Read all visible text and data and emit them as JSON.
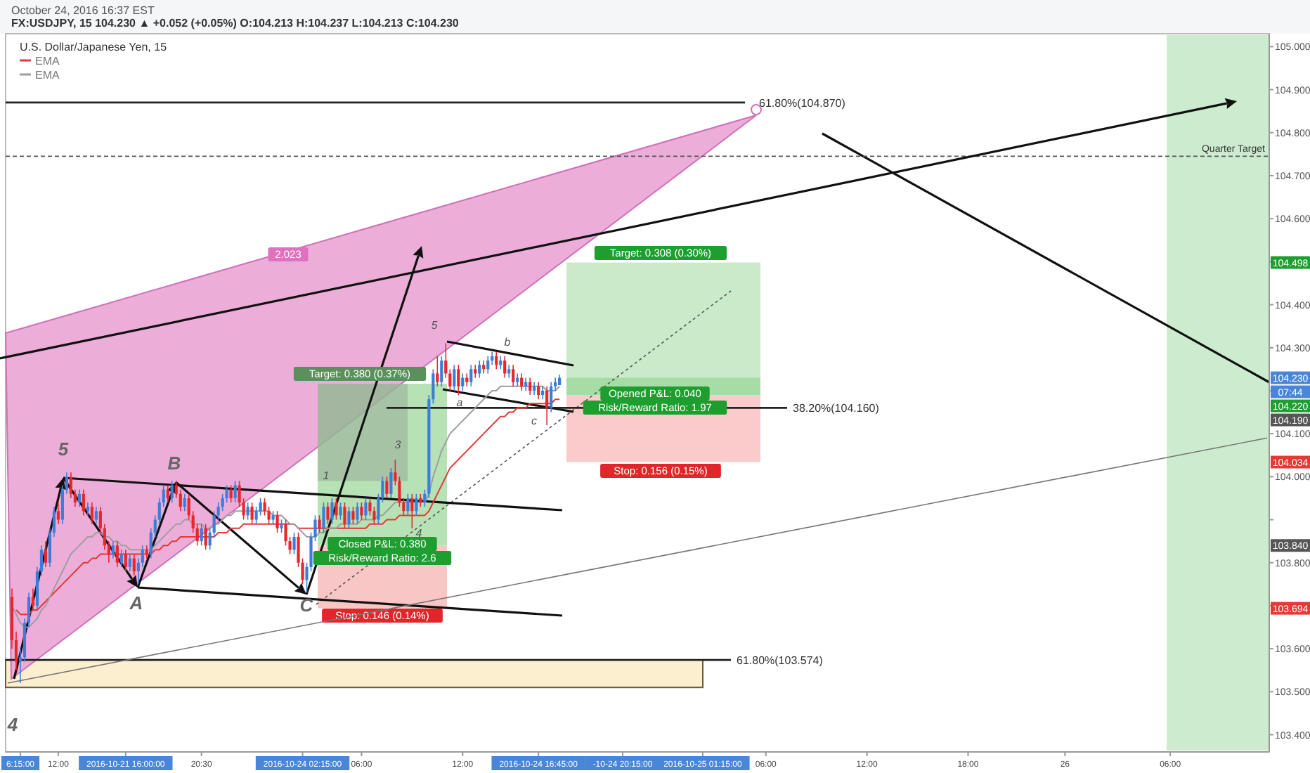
{
  "chart_data": {
    "type": "candlestick",
    "title": "U.S. Dollar/Japanese Yen, 15",
    "subtitle": "October 24, 2016 16:37 EST",
    "categories": [
      null,
      null,
      null,
      "6:15:00",
      null,
      null,
      null,
      null,
      null,
      null,
      null,
      null,
      "12:00",
      null,
      null,
      null,
      null,
      null,
      null,
      null,
      null,
      null,
      null,
      null,
      null,
      null,
      null,
      null,
      "2016-10-21 16:00:00",
      null,
      null,
      null,
      null,
      null,
      null,
      null,
      null,
      null,
      null,
      null,
      null,
      null,
      null,
      null,
      null,
      null,
      "20:30",
      null,
      null,
      null,
      null,
      null,
      null,
      null,
      null,
      null,
      null,
      null,
      null,
      null,
      null,
      null,
      null,
      null,
      null,
      null,
      null,
      null,
      null,
      null,
      "2016-10-24 02:15:00",
      null,
      null,
      null,
      null,
      null,
      null,
      null,
      null,
      null,
      null,
      null,
      null,
      null,
      "06:00",
      null,
      null,
      null,
      null,
      null,
      null,
      null,
      null,
      null,
      null,
      null,
      null,
      null,
      null,
      null,
      null,
      null,
      null,
      null,
      null,
      null,
      null,
      null,
      "12:00",
      null,
      null,
      null,
      null,
      null,
      null,
      null,
      null,
      null,
      null,
      null,
      null,
      null,
      null,
      null,
      null,
      null,
      "2016-10-24 16:45:00",
      null,
      null,
      null,
      null,
      null,
      null,
      null,
      null,
      null,
      null,
      null,
      null,
      null,
      null,
      null,
      null,
      null,
      null,
      null,
      "-10-24 20:15:00",
      null,
      null,
      null,
      null,
      null,
      null,
      null,
      null,
      null,
      null,
      null,
      null,
      null,
      null,
      null,
      null,
      null,
      null,
      "2016-10-25 01:15:00",
      null,
      null,
      null,
      null,
      null,
      null,
      null,
      null,
      null,
      null,
      null,
      null,
      null,
      null,
      "06:00",
      null,
      null,
      null,
      null,
      null,
      null,
      null,
      null,
      null,
      null,
      null,
      null,
      null,
      null,
      null,
      null,
      null,
      null,
      null,
      null,
      null,
      null,
      null,
      "12:00",
      null,
      null,
      null,
      null,
      null,
      null,
      null,
      null,
      null,
      null,
      null,
      null,
      null,
      null,
      null,
      null,
      null,
      null,
      null,
      null,
      null,
      null,
      null,
      "18:00",
      null,
      null,
      null,
      null,
      null,
      null,
      null,
      null,
      null,
      null,
      null,
      null,
      null,
      null,
      null,
      null,
      null,
      null,
      null,
      null,
      null,
      null,
      "26",
      null,
      null,
      null,
      null,
      null,
      null,
      null,
      null,
      null,
      null,
      null,
      null,
      null,
      null,
      null,
      null,
      null,
      null,
      null,
      null,
      null,
      null,
      null,
      null,
      "06:00",
      null,
      null,
      null,
      null,
      null,
      null,
      null,
      null,
      null,
      null,
      null,
      null,
      null,
      null,
      null,
      null,
      null,
      null,
      null,
      null,
      null,
      null,
      null
    ],
    "ohlc": [
      null,
      [
        103.72,
        103.74,
        103.6,
        103.62
      ],
      [
        103.62,
        103.64,
        103.55,
        103.57
      ],
      [
        103.57,
        103.6,
        103.52,
        103.58
      ],
      [
        103.58,
        103.67,
        103.57,
        103.66
      ],
      [
        103.66,
        103.73,
        103.65,
        103.72
      ],
      [
        103.72,
        103.74,
        103.69,
        103.7
      ],
      [
        103.7,
        103.79,
        103.69,
        103.78
      ],
      [
        103.78,
        103.84,
        103.77,
        103.83
      ],
      [
        103.83,
        103.85,
        103.79,
        103.8
      ],
      [
        103.8,
        103.88,
        103.79,
        103.87
      ],
      [
        103.87,
        103.93,
        103.86,
        103.92
      ],
      [
        103.92,
        103.94,
        103.89,
        103.9
      ],
      [
        103.9,
        103.98,
        103.89,
        103.97
      ],
      [
        103.97,
        104.01,
        103.96,
        104.0
      ],
      [
        104.0,
        104.01,
        103.95,
        103.96
      ],
      [
        103.96,
        103.97,
        103.93,
        103.94
      ],
      [
        103.94,
        103.97,
        103.93,
        103.96
      ],
      [
        103.96,
        103.97,
        103.91,
        103.92
      ],
      [
        103.92,
        103.94,
        103.91,
        103.93
      ],
      [
        103.93,
        103.94,
        103.89,
        103.9
      ],
      [
        103.9,
        103.93,
        103.89,
        103.92
      ],
      [
        103.92,
        103.93,
        103.87,
        103.88
      ],
      [
        103.88,
        103.89,
        103.83,
        103.84
      ],
      [
        103.84,
        103.85,
        103.8,
        103.82
      ],
      [
        103.82,
        103.85,
        103.81,
        103.84
      ],
      [
        103.84,
        103.85,
        103.79,
        103.8
      ],
      [
        103.8,
        103.83,
        103.79,
        103.82
      ],
      [
        103.82,
        103.83,
        103.78,
        103.79
      ],
      [
        103.79,
        103.82,
        103.78,
        103.81
      ],
      [
        103.81,
        103.82,
        103.77,
        103.78
      ],
      [
        103.78,
        103.81,
        103.75,
        103.8
      ],
      [
        103.8,
        103.84,
        103.79,
        103.83
      ],
      [
        103.83,
        103.84,
        103.81,
        103.82
      ],
      [
        103.82,
        103.88,
        103.81,
        103.87
      ],
      [
        103.87,
        103.91,
        103.86,
        103.9
      ],
      [
        103.9,
        103.95,
        103.89,
        103.94
      ],
      [
        103.94,
        103.98,
        103.93,
        103.97
      ],
      [
        103.97,
        103.98,
        103.94,
        103.95
      ],
      [
        103.95,
        103.99,
        103.94,
        103.98
      ],
      [
        103.98,
        103.99,
        103.95,
        103.96
      ],
      [
        103.96,
        103.97,
        103.92,
        103.93
      ],
      [
        103.93,
        103.96,
        103.92,
        103.95
      ],
      [
        103.95,
        103.96,
        103.9,
        103.91
      ],
      [
        103.91,
        103.92,
        103.87,
        103.88
      ],
      [
        103.88,
        103.89,
        103.84,
        103.85
      ],
      [
        103.85,
        103.89,
        103.84,
        103.88
      ],
      [
        103.88,
        103.89,
        103.83,
        103.84
      ],
      [
        103.84,
        103.88,
        103.83,
        103.87
      ],
      [
        103.87,
        103.92,
        103.86,
        103.91
      ],
      [
        103.91,
        103.94,
        103.9,
        103.93
      ],
      [
        103.93,
        103.96,
        103.92,
        103.95
      ],
      [
        103.95,
        103.98,
        103.94,
        103.97
      ],
      [
        103.97,
        103.98,
        103.94,
        103.95
      ],
      [
        103.95,
        103.99,
        103.94,
        103.98
      ],
      [
        103.98,
        103.99,
        103.93,
        103.94
      ],
      [
        103.94,
        103.95,
        103.9,
        103.91
      ],
      [
        103.91,
        103.94,
        103.9,
        103.93
      ],
      [
        103.93,
        103.94,
        103.89,
        103.9
      ],
      [
        103.9,
        103.93,
        103.89,
        103.92
      ],
      [
        103.92,
        103.95,
        103.91,
        103.94
      ],
      [
        103.94,
        103.95,
        103.91,
        103.92
      ],
      [
        103.92,
        103.93,
        103.89,
        103.9
      ],
      [
        103.9,
        103.92,
        103.89,
        103.91
      ],
      [
        103.91,
        103.92,
        103.87,
        103.88
      ],
      [
        103.88,
        103.9,
        103.87,
        103.89
      ],
      [
        103.89,
        103.9,
        103.84,
        103.85
      ],
      [
        103.85,
        103.86,
        103.82,
        103.83
      ],
      [
        103.83,
        103.87,
        103.82,
        103.86
      ],
      [
        103.86,
        103.87,
        103.79,
        103.8
      ],
      [
        103.8,
        103.81,
        103.75,
        103.76
      ],
      [
        103.76,
        103.8,
        103.73,
        103.79
      ],
      [
        103.79,
        103.87,
        103.78,
        103.86
      ],
      [
        103.86,
        103.91,
        103.85,
        103.9
      ],
      [
        103.9,
        103.91,
        103.87,
        103.88
      ],
      [
        103.88,
        103.94,
        103.87,
        103.93
      ],
      [
        103.93,
        103.94,
        103.89,
        103.9
      ],
      [
        103.9,
        103.95,
        103.89,
        103.94
      ],
      [
        103.94,
        103.95,
        103.9,
        103.91
      ],
      [
        103.91,
        103.94,
        103.9,
        103.93
      ],
      [
        103.93,
        103.94,
        103.88,
        103.89
      ],
      [
        103.89,
        103.93,
        103.88,
        103.92
      ],
      [
        103.92,
        103.93,
        103.89,
        103.9
      ],
      [
        103.9,
        103.94,
        103.89,
        103.93
      ],
      [
        103.93,
        103.94,
        103.9,
        103.91
      ],
      [
        103.91,
        103.95,
        103.9,
        103.94
      ],
      [
        103.94,
        103.95,
        103.91,
        103.92
      ],
      [
        103.92,
        103.93,
        103.89,
        103.9
      ],
      [
        103.9,
        103.96,
        103.89,
        103.95
      ],
      [
        103.95,
        104.0,
        103.94,
        103.99
      ],
      [
        103.99,
        104.0,
        103.95,
        103.96
      ],
      [
        103.96,
        104.02,
        103.95,
        104.01
      ],
      [
        104.01,
        104.04,
        103.98,
        103.99
      ],
      [
        103.99,
        104.0,
        103.93,
        103.94
      ],
      [
        103.94,
        103.95,
        103.91,
        103.92
      ],
      [
        103.92,
        103.96,
        103.91,
        103.95
      ],
      [
        103.95,
        103.96,
        103.88,
        103.92
      ],
      [
        103.92,
        103.96,
        103.91,
        103.95
      ],
      [
        103.95,
        103.96,
        103.93,
        103.94
      ],
      [
        103.94,
        103.97,
        103.93,
        103.96
      ],
      [
        103.96,
        104.19,
        103.95,
        104.18
      ],
      [
        104.18,
        104.25,
        104.17,
        104.24
      ],
      [
        104.24,
        104.28,
        104.21,
        104.22
      ],
      [
        104.22,
        104.28,
        104.21,
        104.27
      ],
      [
        104.27,
        104.31,
        104.23,
        104.24
      ],
      [
        104.24,
        104.25,
        104.2,
        104.21
      ],
      [
        104.21,
        104.26,
        104.2,
        104.25
      ],
      [
        104.25,
        104.26,
        104.19,
        104.21
      ],
      [
        104.21,
        104.24,
        104.2,
        104.23
      ],
      [
        104.23,
        104.24,
        104.21,
        104.22
      ],
      [
        104.22,
        104.26,
        104.21,
        104.25
      ],
      [
        104.25,
        104.26,
        104.23,
        104.24
      ],
      [
        104.24,
        104.27,
        104.23,
        104.26
      ],
      [
        104.26,
        104.27,
        104.24,
        104.25
      ],
      [
        104.25,
        104.28,
        104.24,
        104.27
      ],
      [
        104.27,
        104.29,
        104.26,
        104.28
      ],
      [
        104.28,
        104.29,
        104.25,
        104.26
      ],
      [
        104.26,
        104.28,
        104.25,
        104.27
      ],
      [
        104.27,
        104.28,
        104.23,
        104.24
      ],
      [
        104.24,
        104.26,
        104.23,
        104.25
      ],
      [
        104.25,
        104.26,
        104.21,
        104.22
      ],
      [
        104.22,
        104.24,
        104.21,
        104.23
      ],
      [
        104.23,
        104.24,
        104.2,
        104.21
      ],
      [
        104.21,
        104.23,
        104.2,
        104.22
      ],
      [
        104.22,
        104.23,
        104.19,
        104.2
      ],
      [
        104.2,
        104.22,
        104.19,
        104.21
      ],
      [
        104.21,
        104.22,
        104.18,
        104.19
      ],
      [
        104.19,
        104.21,
        104.18,
        104.2
      ],
      [
        104.2,
        104.21,
        104.12,
        104.16
      ],
      [
        104.16,
        104.22,
        104.15,
        104.21
      ],
      [
        104.21,
        104.23,
        104.2,
        104.22
      ],
      [
        104.213,
        104.237,
        104.213,
        104.23
      ],
      null,
      null,
      null,
      null,
      null,
      null,
      null,
      null,
      null,
      null,
      null,
      null,
      null,
      null,
      null,
      null,
      null,
      null,
      null,
      null,
      null,
      null,
      null,
      null,
      null,
      null,
      null,
      null,
      null,
      null,
      null,
      null,
      null,
      null,
      null,
      null,
      null,
      null,
      null,
      null,
      null,
      null,
      null,
      null,
      null,
      null,
      null,
      null,
      null,
      null,
      null,
      null,
      null,
      null,
      null,
      null,
      null,
      null,
      null,
      null,
      null,
      null,
      null,
      null,
      null,
      null,
      null,
      null,
      null,
      null,
      null,
      null,
      null,
      null,
      null,
      null,
      null,
      null,
      null,
      null,
      null,
      null,
      null,
      null,
      null,
      null,
      null,
      null,
      null,
      null,
      null,
      null,
      null,
      null,
      null,
      null,
      null,
      null,
      null,
      null,
      null,
      null,
      null,
      null,
      null,
      null,
      null,
      null,
      null,
      null,
      null,
      null,
      null,
      null,
      null,
      null,
      null,
      null,
      null,
      null,
      null,
      null,
      null,
      null,
      null,
      null,
      null,
      null,
      null,
      null,
      null,
      null,
      null,
      null,
      null,
      null,
      null,
      null,
      null,
      null,
      null,
      null,
      null,
      null,
      null,
      null,
      null,
      null,
      null,
      null,
      null,
      null,
      null,
      null,
      null,
      null,
      null,
      null,
      null,
      null,
      null,
      null,
      null,
      null,
      null,
      null,
      null,
      null
    ],
    "series": [
      {
        "name": "EMA",
        "type": "line",
        "color": "#e53935",
        "values": [
          null,
          null,
          103.69,
          103.68,
          103.68,
          103.68,
          103.69,
          103.69,
          103.7,
          103.71,
          103.72,
          103.73,
          103.74,
          103.75,
          103.76,
          103.77,
          103.78,
          103.79,
          103.8,
          103.8,
          103.81,
          103.81,
          103.82,
          103.82,
          103.82,
          103.82,
          103.82,
          103.82,
          103.82,
          103.82,
          103.82,
          103.82,
          103.82,
          103.82,
          103.82,
          103.83,
          103.83,
          103.84,
          103.84,
          103.85,
          103.85,
          103.86,
          103.86,
          103.86,
          103.86,
          103.86,
          103.86,
          103.86,
          103.86,
          103.86,
          103.87,
          103.87,
          103.87,
          103.88,
          103.88,
          103.88,
          103.89,
          103.89,
          103.89,
          103.89,
          103.89,
          103.89,
          103.89,
          103.89,
          103.89,
          103.89,
          103.89,
          103.89,
          103.89,
          103.88,
          103.88,
          103.88,
          103.88,
          103.88,
          103.88,
          103.88,
          103.88,
          103.88,
          103.88,
          103.88,
          103.88,
          103.88,
          103.88,
          103.88,
          103.88,
          103.88,
          103.89,
          103.89,
          103.89,
          103.89,
          103.9,
          103.9,
          103.9,
          103.91,
          103.91,
          103.91,
          103.91,
          103.91,
          103.91,
          103.91,
          103.92,
          103.94,
          103.96,
          103.98,
          104.0,
          104.02,
          104.03,
          104.04,
          104.05,
          104.06,
          104.07,
          104.08,
          104.09,
          104.1,
          104.11,
          104.12,
          104.13,
          104.14,
          104.14,
          104.15,
          104.15,
          104.16,
          104.16,
          104.16,
          104.17,
          104.17,
          104.17,
          104.17,
          104.17,
          104.17,
          104.18,
          104.18,
          null,
          null,
          null,
          null,
          null,
          null,
          null,
          null,
          null,
          null,
          null,
          null,
          null,
          null,
          null,
          null,
          null,
          null,
          null,
          null,
          null,
          null,
          null,
          null,
          null,
          null,
          null,
          null,
          null,
          null,
          null,
          null,
          null,
          null,
          null,
          null,
          null,
          null,
          null,
          null,
          null,
          null,
          null,
          null,
          null,
          null,
          null,
          null,
          null,
          null,
          null,
          null,
          null,
          null,
          null,
          null,
          null,
          null,
          null,
          null,
          null,
          null,
          null,
          null,
          null,
          null,
          null,
          null,
          null,
          null,
          null,
          null,
          null,
          null,
          null,
          null,
          null,
          null,
          null,
          null,
          null,
          null,
          null,
          null,
          null,
          null,
          null,
          null,
          null,
          null,
          null,
          null,
          null,
          null,
          null,
          null,
          null,
          null,
          null,
          null,
          null,
          null,
          null,
          null,
          null,
          null,
          null,
          null,
          null,
          null,
          null,
          null,
          null,
          null,
          null,
          null,
          null,
          null,
          null,
          null,
          null,
          null,
          null,
          null,
          null,
          null,
          null,
          null,
          null,
          null,
          null,
          null,
          null,
          null,
          null,
          null,
          null,
          null,
          null,
          null,
          null,
          null,
          null,
          null,
          null,
          null,
          null,
          null,
          null,
          null,
          null,
          null,
          null,
          null,
          null,
          null,
          null,
          null,
          null,
          null,
          null,
          null,
          null,
          null,
          null,
          null,
          null,
          null
        ]
      },
      {
        "name": "EMA",
        "type": "line",
        "color": "#9e9e9e",
        "values": [
          null,
          103.7,
          103.68,
          103.66,
          103.65,
          103.65,
          103.66,
          103.67,
          103.69,
          103.7,
          103.72,
          103.74,
          103.76,
          103.78,
          103.8,
          103.82,
          103.83,
          103.84,
          103.85,
          103.86,
          103.86,
          103.87,
          103.87,
          103.86,
          103.86,
          103.85,
          103.85,
          103.84,
          103.84,
          103.83,
          103.83,
          103.83,
          103.83,
          103.83,
          103.83,
          103.84,
          103.85,
          103.86,
          103.87,
          103.88,
          103.89,
          103.89,
          103.9,
          103.9,
          103.89,
          103.89,
          103.89,
          103.88,
          103.88,
          103.89,
          103.89,
          103.9,
          103.91,
          103.91,
          103.92,
          103.92,
          103.92,
          103.92,
          103.92,
          103.92,
          103.92,
          103.92,
          103.92,
          103.91,
          103.91,
          103.91,
          103.9,
          103.89,
          103.89,
          103.88,
          103.87,
          103.86,
          103.86,
          103.86,
          103.87,
          103.87,
          103.88,
          103.88,
          103.88,
          103.89,
          103.89,
          103.89,
          103.89,
          103.89,
          103.9,
          103.9,
          103.9,
          103.9,
          103.91,
          103.91,
          103.92,
          103.93,
          103.94,
          103.94,
          103.94,
          103.94,
          103.94,
          103.94,
          103.94,
          103.94,
          103.96,
          104.0,
          104.03,
          104.06,
          104.08,
          104.1,
          104.11,
          104.12,
          104.13,
          104.14,
          104.15,
          104.16,
          104.17,
          104.18,
          104.19,
          104.2,
          104.2,
          104.21,
          104.21,
          104.21,
          104.21,
          104.21,
          104.21,
          104.21,
          104.21,
          104.21,
          104.21,
          104.21,
          104.2,
          104.2,
          104.2,
          104.21,
          null,
          null,
          null,
          null,
          null,
          null,
          null,
          null,
          null,
          null,
          null,
          null,
          null,
          null,
          null,
          null,
          null,
          null,
          null,
          null,
          null,
          null,
          null,
          null,
          null,
          null,
          null,
          null,
          null,
          null,
          null,
          null,
          null,
          null,
          null,
          null,
          null,
          null,
          null,
          null,
          null,
          null,
          null,
          null,
          null,
          null,
          null,
          null,
          null,
          null,
          null,
          null,
          null,
          null,
          null,
          null,
          null,
          null,
          null,
          null,
          null,
          null,
          null,
          null,
          null,
          null,
          null,
          null,
          null,
          null,
          null,
          null,
          null,
          null,
          null,
          null,
          null,
          null,
          null,
          null,
          null,
          null,
          null,
          null,
          null,
          null,
          null,
          null,
          null,
          null,
          null,
          null,
          null,
          null,
          null,
          null,
          null,
          null,
          null,
          null,
          null,
          null,
          null,
          null,
          null,
          null,
          null,
          null,
          null,
          null,
          null,
          null,
          null,
          null,
          null,
          null,
          null,
          null,
          null,
          null,
          null,
          null,
          null,
          null,
          null,
          null,
          null,
          null,
          null,
          null,
          null,
          null,
          null,
          null,
          null,
          null,
          null,
          null,
          null,
          null,
          null,
          null,
          null,
          null,
          null,
          null,
          null,
          null,
          null,
          null,
          null,
          null,
          null,
          null,
          null,
          null,
          null,
          null,
          null,
          null,
          null,
          null,
          null,
          null,
          null,
          null,
          null,
          null
        ]
      },
      {
        "type": "line",
        "color": "#777777",
        "values": [
          103.52,
          null,
          null,
          null,
          null,
          null,
          null,
          null,
          null,
          null,
          null,
          null,
          null,
          null,
          null,
          null,
          null,
          null,
          null,
          null,
          null,
          null,
          null,
          null,
          null,
          null,
          null,
          null,
          null,
          null,
          null,
          null,
          null,
          null,
          null,
          null,
          null,
          null,
          null,
          null,
          null,
          null,
          null,
          null,
          null,
          null,
          null,
          null,
          null,
          null,
          null,
          null,
          null,
          null,
          null,
          null,
          null,
          null,
          null,
          null,
          null,
          null,
          null,
          null,
          null,
          null,
          null,
          null,
          null,
          null,
          null,
          null,
          null,
          null,
          null,
          null,
          null,
          null,
          null,
          null,
          null,
          null,
          null,
          null,
          null,
          null,
          null,
          null,
          null,
          null,
          null,
          null,
          null,
          null,
          null,
          null,
          null,
          null,
          null,
          null,
          null,
          null,
          null,
          null,
          null,
          null,
          null,
          null,
          null,
          null,
          null,
          null,
          null,
          null,
          null,
          null,
          null,
          null,
          null,
          null,
          null,
          null,
          null,
          null,
          null,
          null,
          null,
          null,
          null,
          null,
          null,
          null,
          null,
          null,
          null,
          null,
          null,
          null,
          null,
          null,
          null,
          null,
          null,
          null,
          null,
          null,
          null,
          null,
          null,
          null,
          null,
          null,
          null,
          null,
          null,
          null,
          null,
          null,
          null,
          null,
          null,
          null,
          null,
          null,
          null,
          null,
          null,
          null,
          null,
          null,
          null,
          null,
          null,
          null,
          null,
          null,
          null,
          null,
          null,
          null,
          null,
          null,
          null,
          null,
          null,
          null,
          null,
          null,
          null,
          null,
          null,
          null,
          null,
          null,
          null,
          null,
          null,
          null,
          null,
          null,
          null,
          null,
          null,
          null,
          null,
          null,
          null,
          null,
          null,
          null,
          null,
          null,
          null,
          null,
          null,
          null,
          null,
          null,
          null,
          null,
          null,
          null,
          null,
          null,
          null,
          null,
          null,
          null,
          null,
          null,
          null,
          null,
          null,
          null,
          null,
          null,
          null,
          null,
          null,
          null,
          null,
          null,
          null,
          null,
          null,
          null,
          null,
          null,
          null,
          null,
          null,
          null,
          null,
          null,
          null,
          null,
          null,
          null,
          null,
          null,
          null,
          null,
          null,
          null,
          null,
          null,
          null,
          null,
          null,
          null,
          null,
          null,
          null,
          null,
          null,
          null,
          null,
          null,
          null,
          null,
          null,
          null,
          null,
          null,
          null,
          null,
          null,
          null,
          null,
          null,
          null,
          null,
          null,
          null,
          null,
          null,
          null,
          null,
          null,
          104.09
        ]
      }
    ],
    "ylim": [
      103.36,
      105.03
    ],
    "yticks": [
      {
        "value": 103.4,
        "label": "103.400"
      },
      {
        "value": 103.5,
        "label": "103.500"
      },
      {
        "value": 103.6,
        "label": "103.600"
      },
      {
        "value": 103.7,
        "label": null
      },
      {
        "value": 103.8,
        "label": "103.800"
      },
      {
        "value": 103.9,
        "label": null
      },
      {
        "value": 104.0,
        "label": "104.000"
      },
      {
        "value": 104.1,
        "label": "104.100"
      },
      {
        "value": 104.2,
        "label": null
      },
      {
        "value": 104.3,
        "label": "104.300"
      },
      {
        "value": 104.4,
        "label": "104.400"
      },
      {
        "value": 104.5,
        "label": null
      },
      {
        "value": 104.6,
        "label": "104.600"
      },
      {
        "value": 104.7,
        "label": "104.700"
      },
      {
        "value": 104.8,
        "label": "104.800"
      },
      {
        "value": 104.9,
        "label": "104.900"
      },
      {
        "value": 105.0,
        "label": "105.000"
      }
    ],
    "legend": "top left",
    "ref_lines": [
      {
        "axis": "y",
        "value": 104.87,
        "label": "61.80%(104.870)",
        "color": "#222222",
        "line_style": "solid"
      },
      {
        "axis": "y",
        "value": 104.16,
        "label": "38.20%(104.160)",
        "color": "#222222",
        "line_style": "solid"
      },
      {
        "axis": "y",
        "value": 103.574,
        "label": "61.80%(103.574)",
        "color": "#222222",
        "line_style": "solid"
      },
      {
        "axis": "y",
        "value": 104.745,
        "label": "Quarter Target",
        "color": "#555555",
        "line_style": "dashed"
      }
    ],
    "bands": [
      {
        "axis": "y",
        "from": 103.51,
        "to": 103.574,
        "color": "#fcefcf"
      }
    ],
    "annotations": [
      "FX:USDJPY, 15 104.230 ▲ +0.052 (+0.05%) O:104.213 H:104.237 L:104.213 C:104.230",
      {
        "text": "5",
        "y": 104.01
      },
      {
        "text": "A",
        "y": 103.75
      },
      {
        "text": "B",
        "y": 103.99
      },
      {
        "text": "C",
        "y": 103.73
      },
      "4",
      "1",
      "3",
      "4",
      "5",
      "a",
      "b",
      "c",
      "2.023",
      "Target: 0.380 (0.37%)",
      "Closed P&L: 0.380",
      "Risk/Reward Ratio: 2.6",
      "Stop: 0.146 (0.14%)",
      "Target: 0.308 (0.30%)",
      "Opened P&L: 0.040",
      "Risk/Reward Ratio: 1.97",
      "Stop: 0.156 (0.15%)",
      {
        "text": "104.498",
        "y": 104.498
      },
      {
        "text": "104.230",
        "y": 104.23
      },
      "07:44",
      "104.220",
      "104.190",
      {
        "text": "104.034",
        "y": 104.034
      },
      {
        "text": "103.840",
        "y": 103.84
      },
      {
        "text": "103.694",
        "y": 103.694
      }
    ]
  }
}
